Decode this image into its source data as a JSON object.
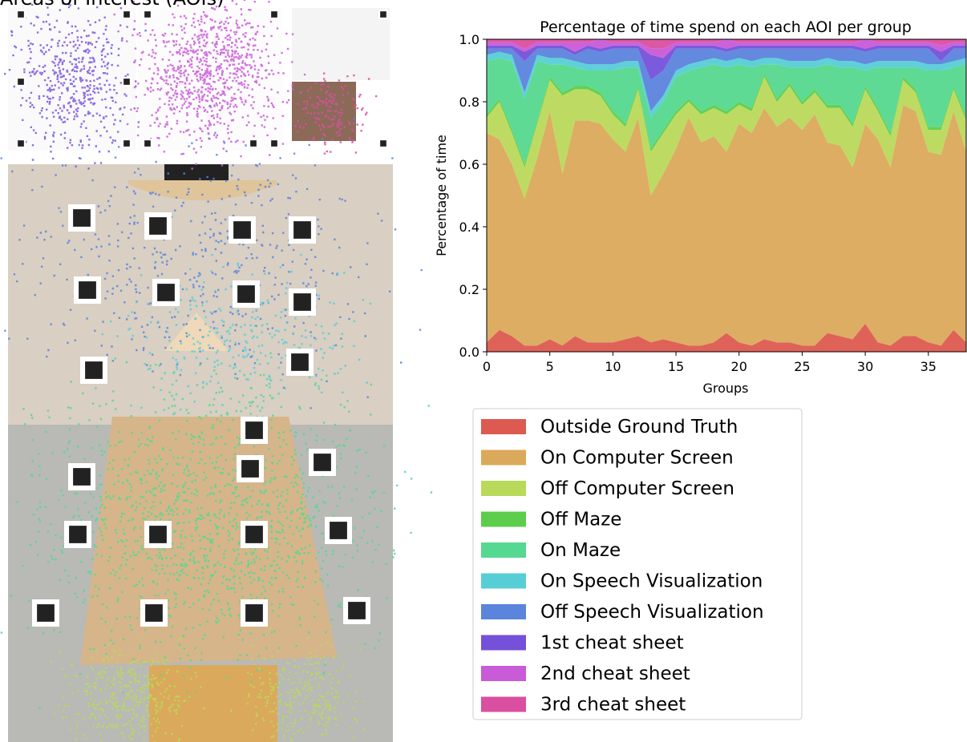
{
  "left_title": "Areas of Interest (AOIs)",
  "chart_data": {
    "type": "stackedarea",
    "title": "Percentage of time spend on each AOI per group",
    "xlabel": "Groups",
    "ylabel": "Percentage of time",
    "x": [
      0,
      1,
      2,
      3,
      4,
      5,
      6,
      7,
      8,
      9,
      10,
      11,
      12,
      13,
      14,
      15,
      16,
      17,
      18,
      19,
      20,
      21,
      22,
      23,
      24,
      25,
      26,
      27,
      28,
      29,
      30,
      31,
      32,
      33,
      34,
      35,
      36,
      37,
      38
    ],
    "xlim": [
      0,
      38
    ],
    "xticks": [
      0,
      5,
      10,
      15,
      20,
      25,
      30,
      35
    ],
    "ylim": [
      0,
      1
    ],
    "yticks": [
      {
        "value": 0,
        "label": "0.0"
      },
      0.2,
      0.4,
      0.6,
      0.8,
      {
        "value": 1,
        "label": "1.0"
      }
    ],
    "legend": "below",
    "series": [
      {
        "name": "Outside Ground Truth",
        "color": "#dd5a50",
        "values": [
          0.03,
          0.07,
          0.05,
          0.02,
          0.02,
          0.04,
          0.02,
          0.05,
          0.03,
          0.03,
          0.03,
          0.04,
          0.05,
          0.03,
          0.04,
          0.03,
          0.02,
          0.02,
          0.03,
          0.06,
          0.03,
          0.02,
          0.04,
          0.03,
          0.03,
          0.02,
          0.02,
          0.06,
          0.05,
          0.04,
          0.09,
          0.03,
          0.02,
          0.05,
          0.05,
          0.03,
          0.02,
          0.07,
          0.03
        ]
      },
      {
        "name": "On Computer Screen",
        "color": "#dba95b",
        "values": [
          0.67,
          0.61,
          0.55,
          0.47,
          0.6,
          0.73,
          0.55,
          0.69,
          0.71,
          0.7,
          0.65,
          0.6,
          0.7,
          0.47,
          0.53,
          0.62,
          0.73,
          0.65,
          0.66,
          0.58,
          0.7,
          0.68,
          0.74,
          0.69,
          0.72,
          0.69,
          0.74,
          0.61,
          0.61,
          0.55,
          0.64,
          0.65,
          0.57,
          0.74,
          0.72,
          0.61,
          0.61,
          0.7,
          0.61
        ]
      },
      {
        "name": "Off Computer Screen",
        "color": "#b9d95a",
        "values": [
          0.05,
          0.12,
          0.1,
          0.1,
          0.11,
          0.1,
          0.25,
          0.1,
          0.1,
          0.09,
          0.08,
          0.08,
          0.09,
          0.14,
          0.13,
          0.11,
          0.05,
          0.09,
          0.09,
          0.12,
          0.06,
          0.07,
          0.1,
          0.08,
          0.1,
          0.08,
          0.07,
          0.11,
          0.12,
          0.13,
          0.11,
          0.09,
          0.1,
          0.08,
          0.06,
          0.07,
          0.08,
          0.07,
          0.1
        ]
      },
      {
        "name": "Off Maze",
        "color": "#5ccd4b",
        "values": [
          0.01,
          0.01,
          0.01,
          0.01,
          0.01,
          0.01,
          0.01,
          0.01,
          0.01,
          0.01,
          0.01,
          0.01,
          0.01,
          0.01,
          0.01,
          0.01,
          0.01,
          0.01,
          0.01,
          0.01,
          0.01,
          0.01,
          0.01,
          0.01,
          0.01,
          0.01,
          0.01,
          0.01,
          0.01,
          0.01,
          0.01,
          0.01,
          0.01,
          0.01,
          0.01,
          0.01,
          0.01,
          0.01,
          0.01
        ]
      },
      {
        "name": "On Maze",
        "color": "#55d88f",
        "values": [
          0.17,
          0.13,
          0.22,
          0.21,
          0.19,
          0.04,
          0.09,
          0.06,
          0.05,
          0.07,
          0.13,
          0.18,
          0.06,
          0.1,
          0.09,
          0.11,
          0.09,
          0.14,
          0.13,
          0.14,
          0.12,
          0.13,
          0.03,
          0.11,
          0.05,
          0.11,
          0.07,
          0.13,
          0.12,
          0.18,
          0.05,
          0.13,
          0.21,
          0.03,
          0.07,
          0.18,
          0.18,
          0.06,
          0.17
        ]
      },
      {
        "name": "On Speech Visualization",
        "color": "#57ced6",
        "values": [
          0.02,
          0.02,
          0.02,
          0.02,
          0.02,
          0.02,
          0.02,
          0.02,
          0.02,
          0.02,
          0.02,
          0.02,
          0.02,
          0.02,
          0.02,
          0.02,
          0.02,
          0.02,
          0.02,
          0.02,
          0.02,
          0.02,
          0.02,
          0.02,
          0.02,
          0.02,
          0.02,
          0.02,
          0.02,
          0.02,
          0.02,
          0.02,
          0.02,
          0.02,
          0.02,
          0.02,
          0.02,
          0.02,
          0.02
        ]
      },
      {
        "name": "Off Speech Visualization",
        "color": "#5b84dd",
        "values": [
          0.02,
          0.01,
          0.02,
          0.1,
          0.02,
          0.03,
          0.03,
          0.02,
          0.05,
          0.04,
          0.05,
          0.04,
          0.04,
          0.1,
          0.08,
          0.07,
          0.05,
          0.04,
          0.03,
          0.03,
          0.03,
          0.04,
          0.03,
          0.03,
          0.04,
          0.04,
          0.04,
          0.03,
          0.04,
          0.04,
          0.04,
          0.04,
          0.04,
          0.04,
          0.04,
          0.05,
          0.01,
          0.04,
          0.03
        ]
      },
      {
        "name": "1st cheat sheet",
        "color": "#7551d9",
        "values": [
          0.01,
          0.01,
          0.01,
          0.03,
          0.01,
          0.01,
          0.01,
          0.01,
          0.01,
          0.01,
          0.01,
          0.01,
          0.01,
          0.08,
          0.04,
          0.01,
          0.01,
          0.01,
          0.01,
          0.01,
          0.01,
          0.01,
          0.01,
          0.01,
          0.01,
          0.01,
          0.01,
          0.01,
          0.01,
          0.01,
          0.01,
          0.01,
          0.01,
          0.01,
          0.01,
          0.01,
          0.03,
          0.01,
          0.01
        ]
      },
      {
        "name": "2nd cheat sheet",
        "color": "#c95ad8",
        "values": [
          0.01,
          0.01,
          0.01,
          0.01,
          0.01,
          0.01,
          0.01,
          0.03,
          0.01,
          0.03,
          0.01,
          0.01,
          0.01,
          0.02,
          0.03,
          0.01,
          0.01,
          0.01,
          0.01,
          0.03,
          0.01,
          0.01,
          0.01,
          0.01,
          0.01,
          0.01,
          0.01,
          0.01,
          0.01,
          0.01,
          0.03,
          0.01,
          0.01,
          0.01,
          0.01,
          0.01,
          0.02,
          0.01,
          0.01
        ]
      },
      {
        "name": "3rd cheat sheet",
        "color": "#da4f9f",
        "values": [
          0.01,
          0.01,
          0.01,
          0.03,
          0.01,
          0.01,
          0.01,
          0.01,
          0.01,
          0,
          0.01,
          0.01,
          0.01,
          0.03,
          0.03,
          0.01,
          0.01,
          0.01,
          0.01,
          0,
          0.01,
          0.01,
          0.01,
          0.01,
          0.01,
          0.01,
          0.01,
          0.01,
          0.01,
          0.01,
          0,
          0.01,
          0.01,
          0.01,
          0.01,
          0.01,
          0.02,
          0.01,
          0.01
        ]
      }
    ]
  }
}
